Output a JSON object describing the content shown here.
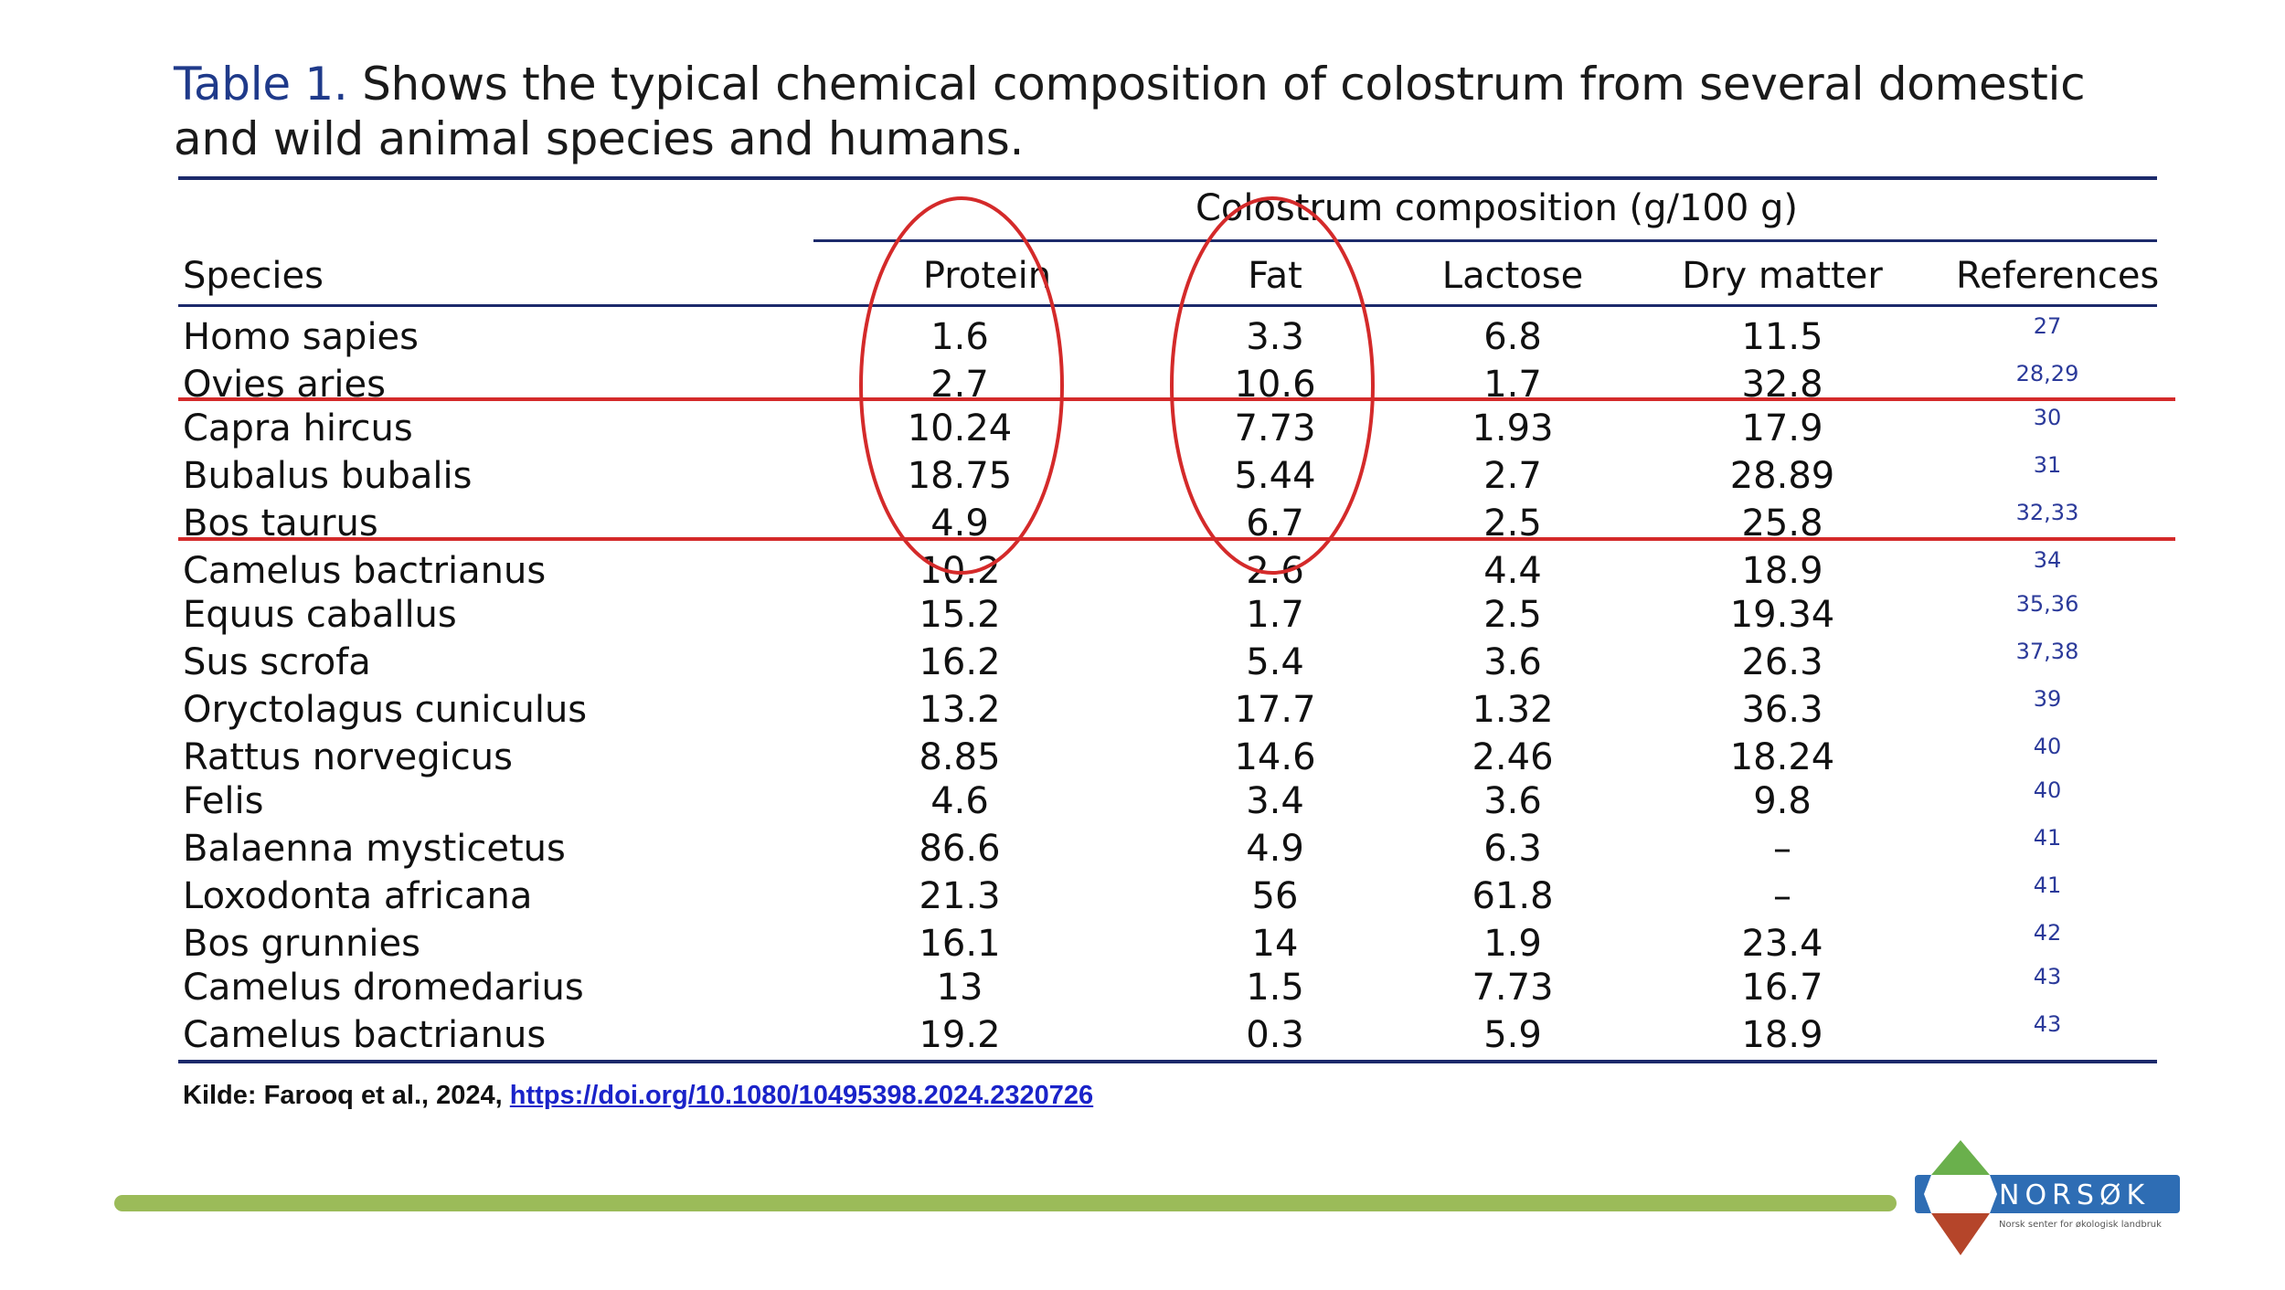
{
  "caption": {
    "label": "Table 1.",
    "text": "Shows the typical chemical composition of colostrum from several domestic and wild animal species and humans."
  },
  "table": {
    "group_header": "Colostrum composition (g/100 g)",
    "columns": [
      "Species",
      "Protein",
      "Fat",
      "Lactose",
      "Dry matter",
      "References"
    ],
    "rows": [
      {
        "species": "Homo sapies",
        "protein": "1.6",
        "fat": "3.3",
        "lactose": "6.8",
        "dry_matter": "11.5",
        "ref": "27"
      },
      {
        "species": "Ovies aries",
        "protein": "2.7",
        "fat": "10.6",
        "lactose": "1.7",
        "dry_matter": "32.8",
        "ref": "28,29"
      },
      {
        "species": "Capra hircus",
        "protein": "10.24",
        "fat": "7.73",
        "lactose": "1.93",
        "dry_matter": "17.9",
        "ref": "30"
      },
      {
        "species": "Bubalus bubalis",
        "protein": "18.75",
        "fat": "5.44",
        "lactose": "2.7",
        "dry_matter": "28.89",
        "ref": "31"
      },
      {
        "species": "Bos taurus",
        "protein": "4.9",
        "fat": "6.7",
        "lactose": "2.5",
        "dry_matter": "25.8",
        "ref": "32,33"
      },
      {
        "species": "Camelus bactrianus",
        "protein": "10.2",
        "fat": "2.6",
        "lactose": "4.4",
        "dry_matter": "18.9",
        "ref": "34"
      },
      {
        "species": "Equus caballus",
        "protein": "15.2",
        "fat": "1.7",
        "lactose": "2.5",
        "dry_matter": "19.34",
        "ref": "35,36"
      },
      {
        "species": "Sus scrofa",
        "protein": "16.2",
        "fat": "5.4",
        "lactose": "3.6",
        "dry_matter": "26.3",
        "ref": "37,38"
      },
      {
        "species": "Oryctolagus cuniculus",
        "protein": "13.2",
        "fat": "17.7",
        "lactose": "1.32",
        "dry_matter": "36.3",
        "ref": "39"
      },
      {
        "species": "Rattus norvegicus",
        "protein": "8.85",
        "fat": "14.6",
        "lactose": "2.46",
        "dry_matter": "18.24",
        "ref": "40"
      },
      {
        "species": "Felis",
        "protein": "4.6",
        "fat": "3.4",
        "lactose": "3.6",
        "dry_matter": "9.8",
        "ref": "40"
      },
      {
        "species": "Balaenna mysticetus",
        "protein": "86.6",
        "fat": "4.9",
        "lactose": "6.3",
        "dry_matter": "–",
        "ref": "41"
      },
      {
        "species": "Loxodonta africana",
        "protein": "21.3",
        "fat": "56",
        "lactose": "61.8",
        "dry_matter": "–",
        "ref": "41"
      },
      {
        "species": "Bos grunnies",
        "protein": "16.1",
        "fat": "14",
        "lactose": "1.9",
        "dry_matter": "23.4",
        "ref": "42"
      },
      {
        "species": "Camelus dromedarius",
        "protein": "13",
        "fat": "1.5",
        "lactose": "7.73",
        "dry_matter": "16.7",
        "ref": "43"
      },
      {
        "species": "Camelus bactrianus",
        "protein": "19.2",
        "fat": "0.3",
        "lactose": "5.9",
        "dry_matter": "18.9",
        "ref": "43"
      }
    ]
  },
  "source": {
    "prefix": "Kilde: Farooq et al., 2024,",
    "link": "https://doi.org/10.1080/10495398.2024.2320726"
  },
  "logo": {
    "name": "NORSØK",
    "tagline": "Norsk senter for økologisk landbruk"
  },
  "colors": {
    "annotation_red": "#d42a2a",
    "rule_navy": "#1c2a6b",
    "footer_green": "#9bbb59",
    "logo_blue": "#2e6db4"
  }
}
